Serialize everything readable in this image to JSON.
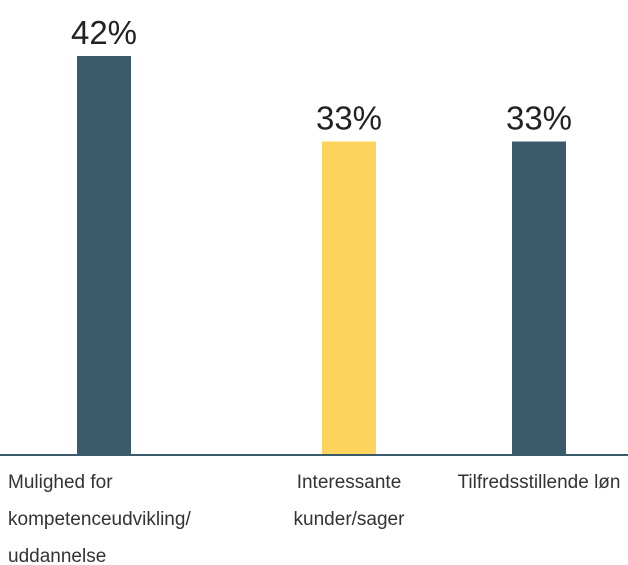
{
  "chart_data": {
    "type": "bar",
    "categories": [
      "Mulighed for kompetenceudvikling/ uddannelse",
      "Interessante kunder/sager",
      "Tilfredsstillende løn"
    ],
    "values": [
      42,
      33,
      33
    ],
    "value_labels": [
      "42%",
      "33%",
      "33%"
    ],
    "colors": [
      "#3a5a6c",
      "#fcd35c",
      "#3a5a6c"
    ],
    "axis_color": "#3a5a6c"
  }
}
